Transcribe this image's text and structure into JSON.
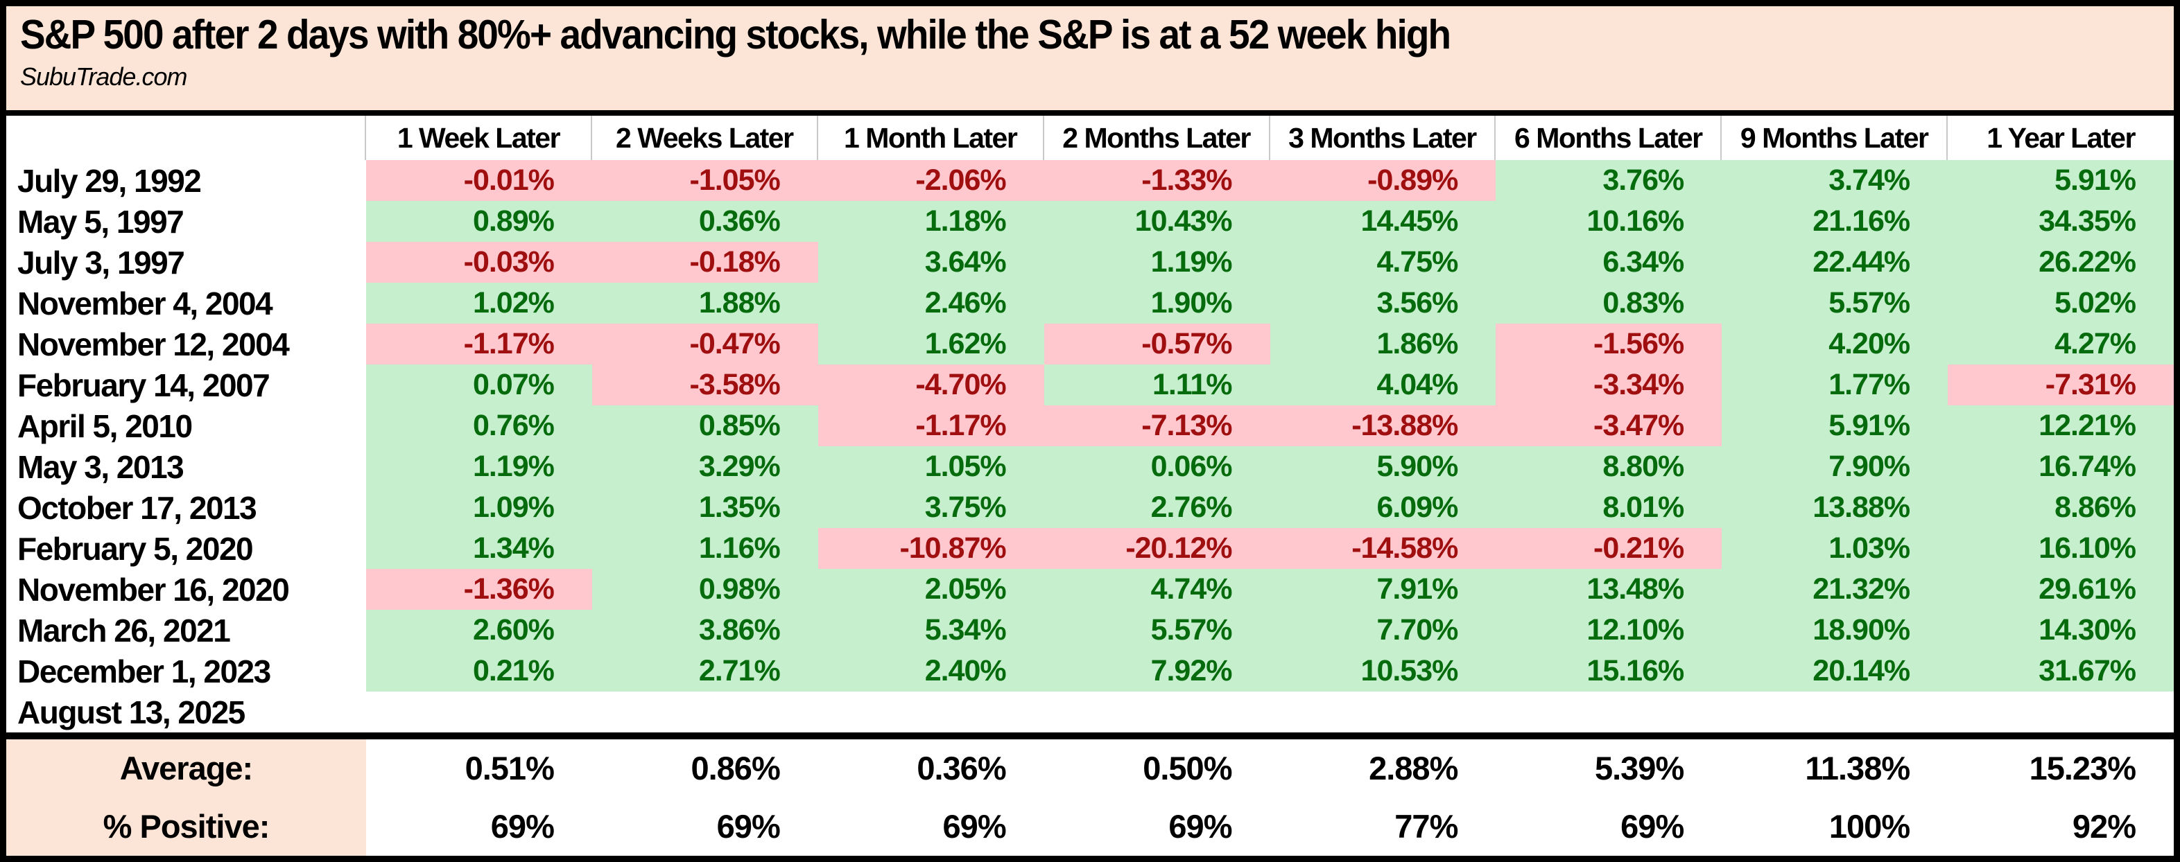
{
  "title": "S&P 500 after 2 days with 80%+ advancing stocks, while the S&P is at a 52 week high",
  "source": "SubuTrade.com",
  "table": {
    "columns": [
      "1 Week Later",
      "2 Weeks Later",
      "1 Month Later",
      "2 Months Later",
      "3 Months Later",
      "6 Months Later",
      "9 Months Later",
      "1 Year Later"
    ],
    "rows": [
      {
        "date": "July 29, 1992",
        "values": [
          "-0.01%",
          "-1.05%",
          "-2.06%",
          "-1.33%",
          "-0.89%",
          "3.76%",
          "3.74%",
          "5.91%"
        ]
      },
      {
        "date": "May 5, 1997",
        "values": [
          "0.89%",
          "0.36%",
          "1.18%",
          "10.43%",
          "14.45%",
          "10.16%",
          "21.16%",
          "34.35%"
        ]
      },
      {
        "date": "July 3, 1997",
        "values": [
          "-0.03%",
          "-0.18%",
          "3.64%",
          "1.19%",
          "4.75%",
          "6.34%",
          "22.44%",
          "26.22%"
        ]
      },
      {
        "date": "November 4, 2004",
        "values": [
          "1.02%",
          "1.88%",
          "2.46%",
          "1.90%",
          "3.56%",
          "0.83%",
          "5.57%",
          "5.02%"
        ]
      },
      {
        "date": "November 12, 2004",
        "values": [
          "-1.17%",
          "-0.47%",
          "1.62%",
          "-0.57%",
          "1.86%",
          "-1.56%",
          "4.20%",
          "4.27%"
        ]
      },
      {
        "date": "February 14, 2007",
        "values": [
          "0.07%",
          "-3.58%",
          "-4.70%",
          "1.11%",
          "4.04%",
          "-3.34%",
          "1.77%",
          "-7.31%"
        ]
      },
      {
        "date": "April 5, 2010",
        "values": [
          "0.76%",
          "0.85%",
          "-1.17%",
          "-7.13%",
          "-13.88%",
          "-3.47%",
          "5.91%",
          "12.21%"
        ]
      },
      {
        "date": "May 3, 2013",
        "values": [
          "1.19%",
          "3.29%",
          "1.05%",
          "0.06%",
          "5.90%",
          "8.80%",
          "7.90%",
          "16.74%"
        ]
      },
      {
        "date": "October 17, 2013",
        "values": [
          "1.09%",
          "1.35%",
          "3.75%",
          "2.76%",
          "6.09%",
          "8.01%",
          "13.88%",
          "8.86%"
        ]
      },
      {
        "date": "February 5, 2020",
        "values": [
          "1.34%",
          "1.16%",
          "-10.87%",
          "-20.12%",
          "-14.58%",
          "-0.21%",
          "1.03%",
          "16.10%"
        ]
      },
      {
        "date": "November 16, 2020",
        "values": [
          "-1.36%",
          "0.98%",
          "2.05%",
          "4.74%",
          "7.91%",
          "13.48%",
          "21.32%",
          "29.61%"
        ]
      },
      {
        "date": "March 26, 2021",
        "values": [
          "2.60%",
          "3.86%",
          "5.34%",
          "5.57%",
          "7.70%",
          "12.10%",
          "18.90%",
          "14.30%"
        ]
      },
      {
        "date": "December 1, 2023",
        "values": [
          "0.21%",
          "2.71%",
          "2.40%",
          "7.92%",
          "10.53%",
          "15.16%",
          "20.14%",
          "31.67%"
        ]
      },
      {
        "date": "August 13, 2025",
        "values": [
          "",
          "",
          "",
          "",
          "",
          "",
          "",
          ""
        ]
      }
    ],
    "summary": {
      "average_label": "Average:",
      "average_values": [
        "0.51%",
        "0.86%",
        "0.36%",
        "0.50%",
        "2.88%",
        "5.39%",
        "11.38%",
        "15.23%"
      ],
      "positive_label": "% Positive:",
      "positive_values": [
        "69%",
        "69%",
        "69%",
        "69%",
        "77%",
        "69%",
        "100%",
        "92%"
      ]
    }
  },
  "colors": {
    "title_bg": "#FCE4D6",
    "positive_bg": "#C6EFCE",
    "positive_text": "#066B0C",
    "negative_bg": "#FFC7CE",
    "negative_text": "#A00F0F",
    "header_gridline": "#C9C9C9",
    "border": "#000000"
  },
  "chart_data": {
    "type": "table",
    "title": "S&P 500 after 2 days with 80%+ advancing stocks, while the S&P is at a 52 week high",
    "source": "SubuTrade.com",
    "columns": [
      "1 Week Later",
      "2 Weeks Later",
      "1 Month Later",
      "2 Months Later",
      "3 Months Later",
      "6 Months Later",
      "9 Months Later",
      "1 Year Later"
    ],
    "unit": "percent",
    "rows": [
      {
        "date": "July 29, 1992",
        "values": [
          -0.01,
          -1.05,
          -2.06,
          -1.33,
          -0.89,
          3.76,
          3.74,
          5.91
        ]
      },
      {
        "date": "May 5, 1997",
        "values": [
          0.89,
          0.36,
          1.18,
          10.43,
          14.45,
          10.16,
          21.16,
          34.35
        ]
      },
      {
        "date": "July 3, 1997",
        "values": [
          -0.03,
          -0.18,
          3.64,
          1.19,
          4.75,
          6.34,
          22.44,
          26.22
        ]
      },
      {
        "date": "November 4, 2004",
        "values": [
          1.02,
          1.88,
          2.46,
          1.9,
          3.56,
          0.83,
          5.57,
          5.02
        ]
      },
      {
        "date": "November 12, 2004",
        "values": [
          -1.17,
          -0.47,
          1.62,
          -0.57,
          1.86,
          -1.56,
          4.2,
          4.27
        ]
      },
      {
        "date": "February 14, 2007",
        "values": [
          0.07,
          -3.58,
          -4.7,
          1.11,
          4.04,
          -3.34,
          1.77,
          -7.31
        ]
      },
      {
        "date": "April 5, 2010",
        "values": [
          0.76,
          0.85,
          -1.17,
          -7.13,
          -13.88,
          -3.47,
          5.91,
          12.21
        ]
      },
      {
        "date": "May 3, 2013",
        "values": [
          1.19,
          3.29,
          1.05,
          0.06,
          5.9,
          8.8,
          7.9,
          16.74
        ]
      },
      {
        "date": "October 17, 2013",
        "values": [
          1.09,
          1.35,
          3.75,
          2.76,
          6.09,
          8.01,
          13.88,
          8.86
        ]
      },
      {
        "date": "February 5, 2020",
        "values": [
          1.34,
          1.16,
          -10.87,
          -20.12,
          -14.58,
          -0.21,
          1.03,
          16.1
        ]
      },
      {
        "date": "November 16, 2020",
        "values": [
          -1.36,
          0.98,
          2.05,
          4.74,
          7.91,
          13.48,
          21.32,
          29.61
        ]
      },
      {
        "date": "March 26, 2021",
        "values": [
          2.6,
          3.86,
          5.34,
          5.57,
          7.7,
          12.1,
          18.9,
          14.3
        ]
      },
      {
        "date": "December 1, 2023",
        "values": [
          0.21,
          2.71,
          2.4,
          7.92,
          10.53,
          15.16,
          20.14,
          31.67
        ]
      },
      {
        "date": "August 13, 2025",
        "values": [
          null,
          null,
          null,
          null,
          null,
          null,
          null,
          null
        ]
      }
    ],
    "average": [
      0.51,
      0.86,
      0.36,
      0.5,
      2.88,
      5.39,
      11.38,
      15.23
    ],
    "percent_positive": [
      69,
      69,
      69,
      69,
      77,
      69,
      100,
      92
    ],
    "cell_color_rule": "green background for positive values, pink background for negative values"
  }
}
